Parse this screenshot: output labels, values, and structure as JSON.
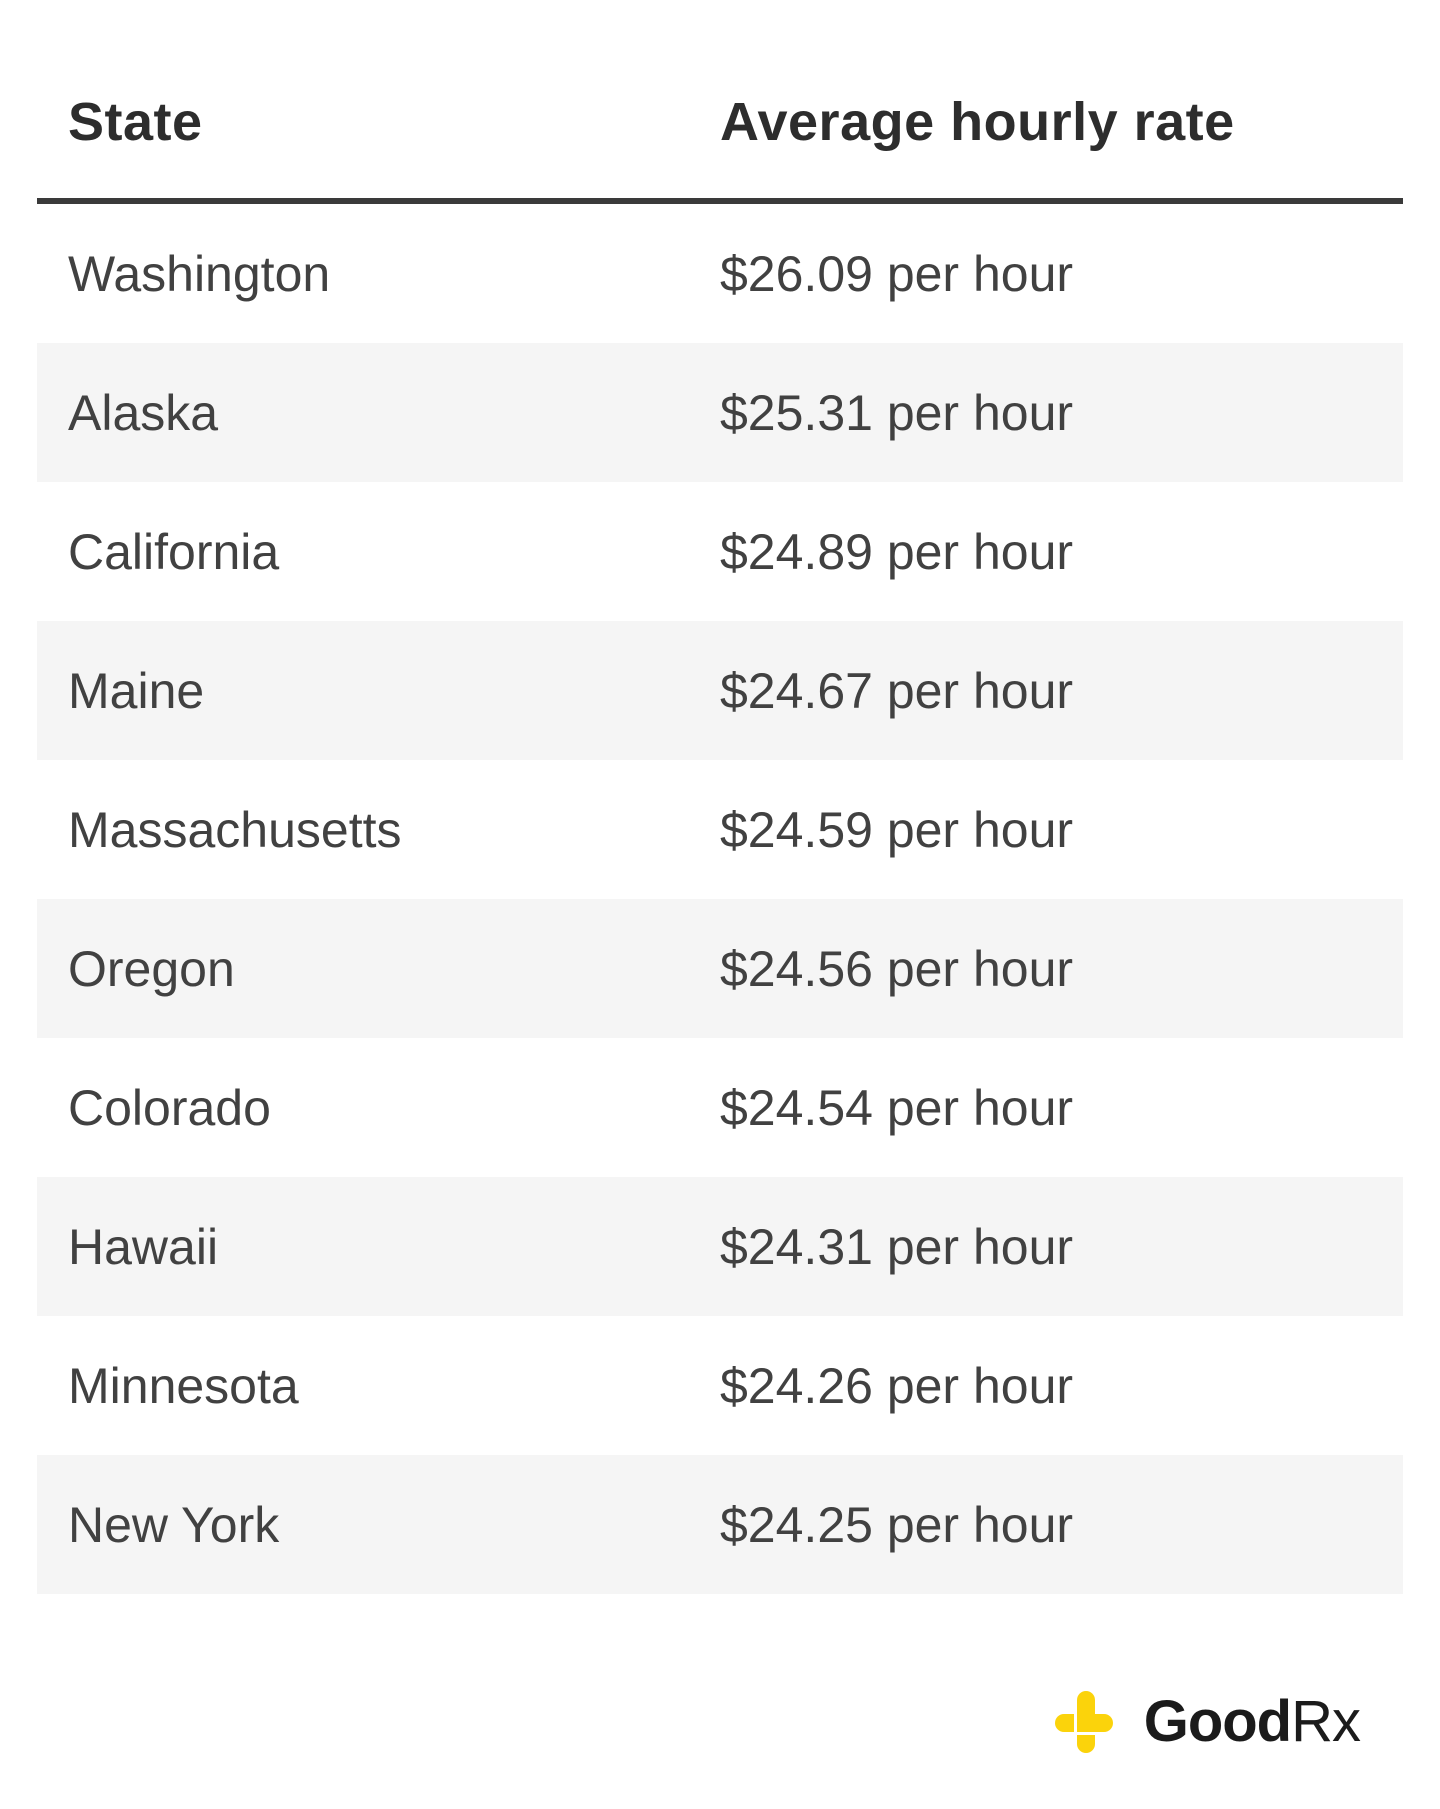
{
  "chart_data": {
    "type": "table",
    "columns": [
      "State",
      "Average hourly rate"
    ],
    "rows": [
      [
        "Washington",
        "$26.09 per hour"
      ],
      [
        "Alaska",
        "$25.31 per hour"
      ],
      [
        "California",
        "$24.89 per hour"
      ],
      [
        "Maine",
        "$24.67 per hour"
      ],
      [
        "Massachusetts",
        "$24.59 per hour"
      ],
      [
        "Oregon",
        "$24.56 per hour"
      ],
      [
        "Colorado",
        "$24.54 per hour"
      ],
      [
        "Hawaii",
        "$24.31 per hour"
      ],
      [
        "Minnesota",
        "$24.26 per hour"
      ],
      [
        "New York",
        "$24.25 per hour"
      ]
    ],
    "rates_numeric_usd_per_hour": [
      26.09,
      25.31,
      24.89,
      24.67,
      24.59,
      24.56,
      24.54,
      24.31,
      24.26,
      24.25
    ],
    "legend_position": "none",
    "grid": "zebra-striped rows"
  },
  "table": {
    "header": {
      "state": "State",
      "rate": "Average hourly rate"
    },
    "rows": [
      {
        "state": "Washington",
        "rate": "$26.09 per hour"
      },
      {
        "state": "Alaska",
        "rate": "$25.31 per hour"
      },
      {
        "state": "California",
        "rate": "$24.89 per hour"
      },
      {
        "state": "Maine",
        "rate": "$24.67 per hour"
      },
      {
        "state": "Massachusetts",
        "rate": "$24.59 per hour"
      },
      {
        "state": "Oregon",
        "rate": "$24.56 per hour"
      },
      {
        "state": "Colorado",
        "rate": "$24.54 per hour"
      },
      {
        "state": "Hawaii",
        "rate": "$24.31 per hour"
      },
      {
        "state": "Minnesota",
        "rate": "$24.26 per hour"
      },
      {
        "state": "New York",
        "rate": "$24.25 per hour"
      }
    ]
  },
  "footer": {
    "logo": {
      "icon": "goodrx-cross-icon",
      "text_bold": "Good",
      "text_regular": "Rx"
    }
  },
  "colors": {
    "background": "#ffffff",
    "stripe": "#f5f5f5",
    "rule": "#3a3a3a",
    "header_text": "#2d2d2d",
    "row_text": "#414141",
    "brand_yellow": "#fbd30b",
    "brand_text": "#1b1b1b"
  }
}
